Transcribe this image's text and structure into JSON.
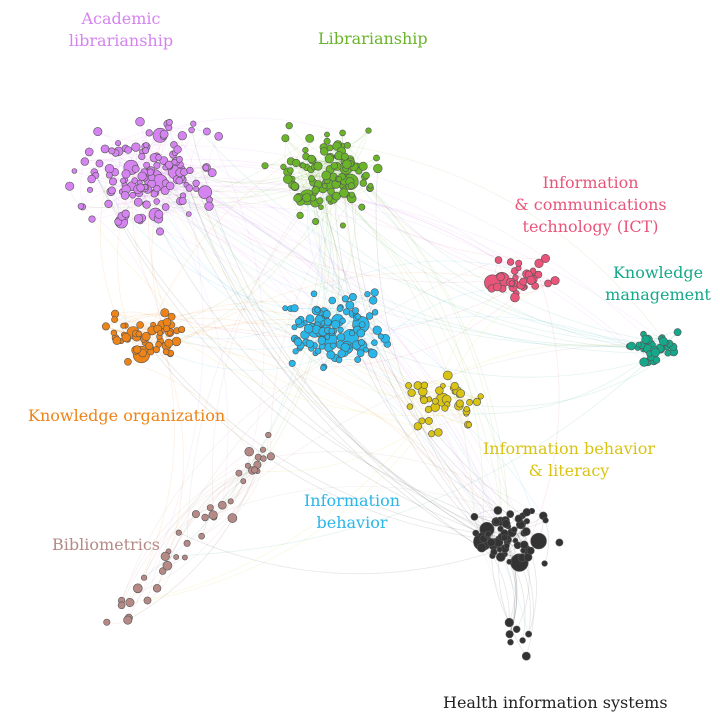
{
  "clusters": {
    "academic": {
      "lines": [
        "Academic",
        "librarianship"
      ],
      "color": "#d583f0"
    },
    "librarianship": {
      "lines": [
        "Librarianship"
      ],
      "color": "#6ab42a"
    },
    "ict": {
      "lines": [
        "Information",
        "& communications",
        "technology (ICT)"
      ],
      "color": "#e9557a"
    },
    "knowledge_management": {
      "lines": [
        "Knowledge",
        "management"
      ],
      "color": "#15a88a"
    },
    "knowledge_organization": {
      "lines": [
        "Knowledge organization"
      ],
      "color": "#ee8317"
    },
    "information_behavior": {
      "lines": [
        "Information",
        "behavior"
      ],
      "color": "#29b6e9"
    },
    "info_behavior_literacy": {
      "lines": [
        "Information behavior",
        "& literacy"
      ],
      "color": "#d9c313"
    },
    "bibliometrics": {
      "lines": [
        "Bibliometrics"
      ],
      "color": "#b58a86"
    },
    "health": {
      "lines": [
        "Health information systems"
      ],
      "color": "#333333"
    }
  }
}
